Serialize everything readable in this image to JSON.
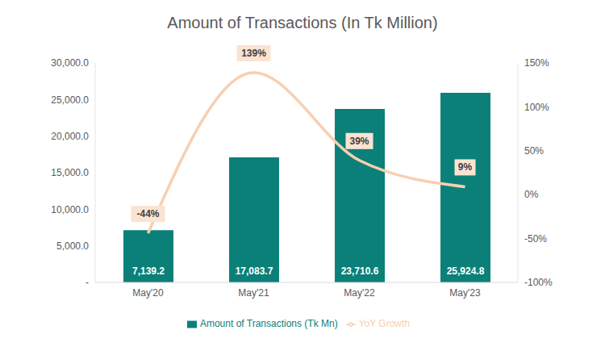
{
  "chart_data": {
    "type": "bar",
    "title": "Amount of Transactions (In Tk Million)",
    "categories": [
      "May'20",
      "May'21",
      "May'22",
      "May'23"
    ],
    "series": [
      {
        "name": "Amount of Transactions (Tk Mn)",
        "type": "bar",
        "color": "#0b8079",
        "values": [
          7139.2,
          17083.7,
          23710.6,
          25924.8
        ],
        "value_labels": [
          "7,139.2",
          "17,083.7",
          "23,710.6",
          "25,924.8"
        ]
      },
      {
        "name": "YoY Growth",
        "type": "line",
        "color": "#f8cfb0",
        "axis": "y2",
        "marker": "none",
        "values": [
          -44,
          139,
          39,
          9
        ],
        "value_labels": [
          "-44%",
          "139%",
          "39%",
          "9%"
        ]
      }
    ],
    "ylim": [
      0,
      30000
    ],
    "yticks": [
      {
        "value": 0,
        "label": "-"
      },
      {
        "value": 5000,
        "label": "5,000.0"
      },
      {
        "value": 10000,
        "label": "10,000.0"
      },
      {
        "value": 15000,
        "label": "15,000.0"
      },
      {
        "value": 20000,
        "label": "20,000.0"
      },
      {
        "value": 25000,
        "label": "25,000.0"
      },
      {
        "value": 30000,
        "label": "30,000.0"
      }
    ],
    "y2lim": [
      -100,
      150
    ],
    "y2ticks": [
      {
        "value": -100,
        "label": "-100%"
      },
      {
        "value": -50,
        "label": "-50%"
      },
      {
        "value": 0,
        "label": "0%"
      },
      {
        "value": 50,
        "label": "50%"
      },
      {
        "value": 100,
        "label": "100%"
      },
      {
        "value": 150,
        "label": "150%"
      }
    ],
    "data_labels": true,
    "legend": "bottom",
    "grid": false
  }
}
